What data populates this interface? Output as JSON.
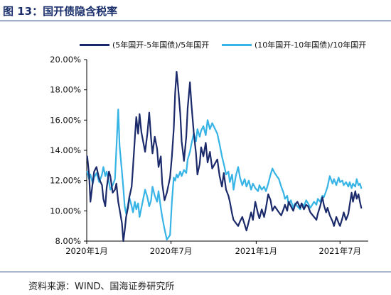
{
  "figure_title": "图 13：国开债隐含税率",
  "source": "资料来源：WIND、国海证券研究所",
  "colors": {
    "series1": "#1b2a6b",
    "series2": "#37b4e6",
    "title": "#1a2f6b",
    "rule": "#1f3b7a"
  },
  "chart_data": {
    "type": "line",
    "y_format": "percent",
    "ylim": [
      8,
      20
    ],
    "yticks": [
      "8.00%",
      "10.00%",
      "12.00%",
      "14.00%",
      "16.00%",
      "18.00%",
      "20.00%"
    ],
    "xlim": [
      "2020-01-01",
      "2021-08-31"
    ],
    "xticks": [
      {
        "date": "2020-01-01",
        "label": "2020年1月"
      },
      {
        "date": "2020-07-01",
        "label": "2020年7月"
      },
      {
        "date": "2021-01-01",
        "label": "2021年1月"
      },
      {
        "date": "2021-07-01",
        "label": "2021年7月"
      }
    ],
    "legend_position": "top",
    "grid": false,
    "series": [
      {
        "name": "(5年国开-5年国债)/5年国开",
        "color": "#1b2a6b",
        "points": [
          [
            "2020-01-02",
            13.6
          ],
          [
            "2020-01-06",
            12.4
          ],
          [
            "2020-01-09",
            10.6
          ],
          [
            "2020-01-14",
            11.9
          ],
          [
            "2020-01-17",
            12.6
          ],
          [
            "2020-01-22",
            12.9
          ],
          [
            "2020-01-28",
            12.1
          ],
          [
            "2020-02-03",
            11.7
          ],
          [
            "2020-02-06",
            10.8
          ],
          [
            "2020-02-10",
            10.3
          ],
          [
            "2020-02-13",
            11.5
          ],
          [
            "2020-02-18",
            12.6
          ],
          [
            "2020-02-21",
            12.3
          ],
          [
            "2020-02-26",
            11.2
          ],
          [
            "2020-03-02",
            11.4
          ],
          [
            "2020-03-05",
            11.8
          ],
          [
            "2020-03-09",
            10.6
          ],
          [
            "2020-03-12",
            10.1
          ],
          [
            "2020-03-17",
            9.2
          ],
          [
            "2020-03-20",
            8.0
          ],
          [
            "2020-03-23",
            8.7
          ],
          [
            "2020-03-26",
            9.6
          ],
          [
            "2020-03-30",
            10.2
          ],
          [
            "2020-04-02",
            10.9
          ],
          [
            "2020-04-07",
            11.6
          ],
          [
            "2020-04-10",
            12.9
          ],
          [
            "2020-04-14",
            14.8
          ],
          [
            "2020-04-17",
            16.2
          ],
          [
            "2020-04-21",
            15.1
          ],
          [
            "2020-04-24",
            16.4
          ],
          [
            "2020-04-28",
            15.2
          ],
          [
            "2020-05-06",
            13.9
          ],
          [
            "2020-05-11",
            15.1
          ],
          [
            "2020-05-15",
            16.5
          ],
          [
            "2020-05-19",
            14.8
          ],
          [
            "2020-05-22",
            13.8
          ],
          [
            "2020-05-27",
            14.9
          ],
          [
            "2020-06-01",
            14.1
          ],
          [
            "2020-06-04",
            12.9
          ],
          [
            "2020-06-09",
            13.6
          ],
          [
            "2020-06-12",
            11.8
          ],
          [
            "2020-06-17",
            10.7
          ],
          [
            "2020-06-22",
            11.2
          ],
          [
            "2020-06-29",
            12.2
          ],
          [
            "2020-07-03",
            13.6
          ],
          [
            "2020-07-07",
            15.4
          ],
          [
            "2020-07-10",
            17.8
          ],
          [
            "2020-07-13",
            19.2
          ],
          [
            "2020-07-16",
            18.3
          ],
          [
            "2020-07-21",
            16.4
          ],
          [
            "2020-07-24",
            14.6
          ],
          [
            "2020-07-29",
            13.3
          ],
          [
            "2020-08-03",
            14.9
          ],
          [
            "2020-08-06",
            16.8
          ],
          [
            "2020-08-11",
            18.5
          ],
          [
            "2020-08-14",
            17.1
          ],
          [
            "2020-08-19",
            15.2
          ],
          [
            "2020-08-24",
            13.8
          ],
          [
            "2020-08-27",
            12.4
          ],
          [
            "2020-09-01",
            13.1
          ],
          [
            "2020-09-04",
            14.2
          ],
          [
            "2020-09-09",
            13.6
          ],
          [
            "2020-09-14",
            14.5
          ],
          [
            "2020-09-18",
            13.2
          ],
          [
            "2020-09-23",
            13.9
          ],
          [
            "2020-09-28",
            12.8
          ],
          [
            "2020-10-09",
            13.4
          ],
          [
            "2020-10-14",
            12.3
          ],
          [
            "2020-10-19",
            11.6
          ],
          [
            "2020-10-23",
            12.5
          ],
          [
            "2020-10-28",
            11.4
          ],
          [
            "2020-11-02",
            11.0
          ],
          [
            "2020-11-05",
            10.6
          ],
          [
            "2020-11-10",
            9.8
          ],
          [
            "2020-11-13",
            9.4
          ],
          [
            "2020-11-18",
            9.2
          ],
          [
            "2020-11-23",
            9.0
          ],
          [
            "2020-11-27",
            9.3
          ],
          [
            "2020-12-02",
            9.6
          ],
          [
            "2020-12-07",
            9.1
          ],
          [
            "2020-12-11",
            8.7
          ],
          [
            "2020-12-16",
            9.3
          ],
          [
            "2020-12-21",
            9.9
          ],
          [
            "2020-12-25",
            9.4
          ],
          [
            "2020-12-30",
            10.6
          ],
          [
            "2021-01-05",
            9.8
          ],
          [
            "2021-01-08",
            9.5
          ],
          [
            "2021-01-13",
            10.1
          ],
          [
            "2021-01-18",
            9.6
          ],
          [
            "2021-01-22",
            10.2
          ],
          [
            "2021-01-27",
            11.1
          ],
          [
            "2021-02-01",
            10.7
          ],
          [
            "2021-02-05",
            10.0
          ],
          [
            "2021-02-10",
            10.3
          ],
          [
            "2021-02-19",
            9.9
          ],
          [
            "2021-02-24",
            9.7
          ],
          [
            "2021-03-01",
            10.1
          ],
          [
            "2021-03-04",
            10.4
          ],
          [
            "2021-03-09",
            10.0
          ],
          [
            "2021-03-12",
            10.6
          ],
          [
            "2021-03-17",
            10.3
          ],
          [
            "2021-03-22",
            10.0
          ],
          [
            "2021-03-26",
            10.4
          ],
          [
            "2021-03-31",
            10.6
          ],
          [
            "2021-04-06",
            10.2
          ],
          [
            "2021-04-09",
            10.5
          ],
          [
            "2021-04-14",
            10.1
          ],
          [
            "2021-04-19",
            10.4
          ],
          [
            "2021-04-23",
            10.3
          ],
          [
            "2021-04-28",
            9.9
          ],
          [
            "2021-05-06",
            9.6
          ],
          [
            "2021-05-11",
            9.4
          ],
          [
            "2021-05-14",
            9.8
          ],
          [
            "2021-05-19",
            10.3
          ],
          [
            "2021-05-24",
            10.9
          ],
          [
            "2021-05-27",
            10.4
          ],
          [
            "2021-06-01",
            9.9
          ],
          [
            "2021-06-04",
            10.2
          ],
          [
            "2021-06-09",
            9.7
          ],
          [
            "2021-06-15",
            9.3
          ],
          [
            "2021-06-18",
            9.0
          ],
          [
            "2021-06-23",
            9.6
          ],
          [
            "2021-06-28",
            9.2
          ],
          [
            "2021-07-01",
            9.0
          ],
          [
            "2021-07-06",
            9.5
          ],
          [
            "2021-07-09",
            9.9
          ],
          [
            "2021-07-14",
            9.4
          ],
          [
            "2021-07-19",
            9.8
          ],
          [
            "2021-07-22",
            10.4
          ],
          [
            "2021-07-26",
            11.2
          ],
          [
            "2021-07-29",
            10.6
          ],
          [
            "2021-08-03",
            11.3
          ],
          [
            "2021-08-06",
            10.8
          ],
          [
            "2021-08-10",
            11.1
          ],
          [
            "2021-08-13",
            10.6
          ],
          [
            "2021-08-16",
            10.2
          ]
        ]
      },
      {
        "name": "(10年国开-10年国债)/10年国开",
        "color": "#37b4e6",
        "points": [
          [
            "2020-01-02",
            12.6
          ],
          [
            "2020-01-06",
            12.1
          ],
          [
            "2020-01-09",
            12.4
          ],
          [
            "2020-01-14",
            11.8
          ],
          [
            "2020-01-17",
            12.2
          ],
          [
            "2020-01-22",
            12.5
          ],
          [
            "2020-01-28",
            11.9
          ],
          [
            "2020-02-03",
            12.4
          ],
          [
            "2020-02-06",
            12.9
          ],
          [
            "2020-02-10",
            12.3
          ],
          [
            "2020-02-13",
            12.6
          ],
          [
            "2020-02-18",
            11.9
          ],
          [
            "2020-02-21",
            11.4
          ],
          [
            "2020-02-26",
            11.7
          ],
          [
            "2020-03-02",
            12.1
          ],
          [
            "2020-03-05",
            14.1
          ],
          [
            "2020-03-09",
            16.7
          ],
          [
            "2020-03-12",
            14.3
          ],
          [
            "2020-03-17",
            12.6
          ],
          [
            "2020-03-20",
            11.5
          ],
          [
            "2020-03-23",
            10.3
          ],
          [
            "2020-03-26",
            9.8
          ],
          [
            "2020-03-30",
            10.4
          ],
          [
            "2020-04-02",
            10.9
          ],
          [
            "2020-04-07",
            10.3
          ],
          [
            "2020-04-10",
            9.9
          ],
          [
            "2020-04-14",
            10.6
          ],
          [
            "2020-04-17",
            10.1
          ],
          [
            "2020-04-21",
            10.5
          ],
          [
            "2020-04-24",
            9.6
          ],
          [
            "2020-04-28",
            10.2
          ],
          [
            "2020-05-06",
            11.4
          ],
          [
            "2020-05-11",
            10.9
          ],
          [
            "2020-05-15",
            10.3
          ],
          [
            "2020-05-19",
            10.7
          ],
          [
            "2020-05-22",
            11.6
          ],
          [
            "2020-05-27",
            11.0
          ],
          [
            "2020-06-01",
            10.6
          ],
          [
            "2020-06-04",
            11.3
          ],
          [
            "2020-06-09",
            10.2
          ],
          [
            "2020-06-12",
            9.6
          ],
          [
            "2020-06-17",
            8.8
          ],
          [
            "2020-06-22",
            8.1
          ],
          [
            "2020-06-29",
            8.4
          ],
          [
            "2020-07-03",
            10.6
          ],
          [
            "2020-07-07",
            12.2
          ],
          [
            "2020-07-10",
            12.0
          ],
          [
            "2020-07-13",
            12.4
          ],
          [
            "2020-07-16",
            12.2
          ],
          [
            "2020-07-21",
            12.6
          ],
          [
            "2020-07-24",
            12.3
          ],
          [
            "2020-07-29",
            12.7
          ],
          [
            "2020-08-03",
            12.5
          ],
          [
            "2020-08-06",
            13.4
          ],
          [
            "2020-08-11",
            13.9
          ],
          [
            "2020-08-14",
            14.4
          ],
          [
            "2020-08-19",
            15.1
          ],
          [
            "2020-08-24",
            14.6
          ],
          [
            "2020-08-27",
            15.4
          ],
          [
            "2020-09-01",
            14.9
          ],
          [
            "2020-09-04",
            15.3
          ],
          [
            "2020-09-09",
            15.6
          ],
          [
            "2020-09-14",
            15.0
          ],
          [
            "2020-09-18",
            16.0
          ],
          [
            "2020-09-23",
            15.4
          ],
          [
            "2020-09-28",
            15.8
          ],
          [
            "2020-10-09",
            15.1
          ],
          [
            "2020-10-14",
            14.4
          ],
          [
            "2020-10-19",
            13.6
          ],
          [
            "2020-10-23",
            13.1
          ],
          [
            "2020-10-28",
            12.4
          ],
          [
            "2020-11-02",
            12.6
          ],
          [
            "2020-11-05",
            11.9
          ],
          [
            "2020-11-10",
            12.4
          ],
          [
            "2020-11-13",
            11.4
          ],
          [
            "2020-11-18",
            12.3
          ],
          [
            "2020-11-23",
            12.9
          ],
          [
            "2020-11-27",
            12.2
          ],
          [
            "2020-12-02",
            11.7
          ],
          [
            "2020-12-07",
            12.1
          ],
          [
            "2020-12-11",
            11.6
          ],
          [
            "2020-12-16",
            12.0
          ],
          [
            "2020-12-21",
            11.4
          ],
          [
            "2020-12-25",
            11.8
          ],
          [
            "2020-12-30",
            11.5
          ],
          [
            "2021-01-05",
            11.3
          ],
          [
            "2021-01-08",
            11.7
          ],
          [
            "2021-01-13",
            11.4
          ],
          [
            "2021-01-18",
            11.6
          ],
          [
            "2021-01-22",
            11.3
          ],
          [
            "2021-01-27",
            11.8
          ],
          [
            "2021-02-01",
            12.4
          ],
          [
            "2021-02-05",
            12.8
          ],
          [
            "2021-02-10",
            12.5
          ],
          [
            "2021-02-19",
            12.1
          ],
          [
            "2021-02-24",
            11.6
          ],
          [
            "2021-03-01",
            11.2
          ],
          [
            "2021-03-04",
            10.8
          ],
          [
            "2021-03-09",
            11.0
          ],
          [
            "2021-03-12",
            10.4
          ],
          [
            "2021-03-17",
            10.7
          ],
          [
            "2021-03-22",
            10.2
          ],
          [
            "2021-03-26",
            10.5
          ],
          [
            "2021-03-31",
            10.3
          ],
          [
            "2021-04-06",
            10.1
          ],
          [
            "2021-04-09",
            10.5
          ],
          [
            "2021-04-14",
            10.3
          ],
          [
            "2021-04-19",
            10.7
          ],
          [
            "2021-04-23",
            10.5
          ],
          [
            "2021-04-28",
            10.2
          ],
          [
            "2021-05-06",
            10.6
          ],
          [
            "2021-05-11",
            10.4
          ],
          [
            "2021-05-14",
            10.8
          ],
          [
            "2021-05-19",
            10.6
          ],
          [
            "2021-05-24",
            11.0
          ],
          [
            "2021-05-27",
            10.9
          ],
          [
            "2021-06-01",
            11.3
          ],
          [
            "2021-06-04",
            11.6
          ],
          [
            "2021-06-09",
            12.3
          ],
          [
            "2021-06-15",
            11.8
          ],
          [
            "2021-06-18",
            12.1
          ],
          [
            "2021-06-23",
            11.7
          ],
          [
            "2021-06-28",
            12.2
          ],
          [
            "2021-07-01",
            11.9
          ],
          [
            "2021-07-06",
            12.0
          ],
          [
            "2021-07-09",
            11.7
          ],
          [
            "2021-07-14",
            11.9
          ],
          [
            "2021-07-19",
            11.6
          ],
          [
            "2021-07-22",
            11.9
          ],
          [
            "2021-07-26",
            11.5
          ],
          [
            "2021-07-29",
            11.8
          ],
          [
            "2021-08-03",
            11.6
          ],
          [
            "2021-08-06",
            12.1
          ],
          [
            "2021-08-10",
            11.7
          ],
          [
            "2021-08-13",
            11.8
          ],
          [
            "2021-08-16",
            11.5
          ]
        ]
      }
    ]
  }
}
